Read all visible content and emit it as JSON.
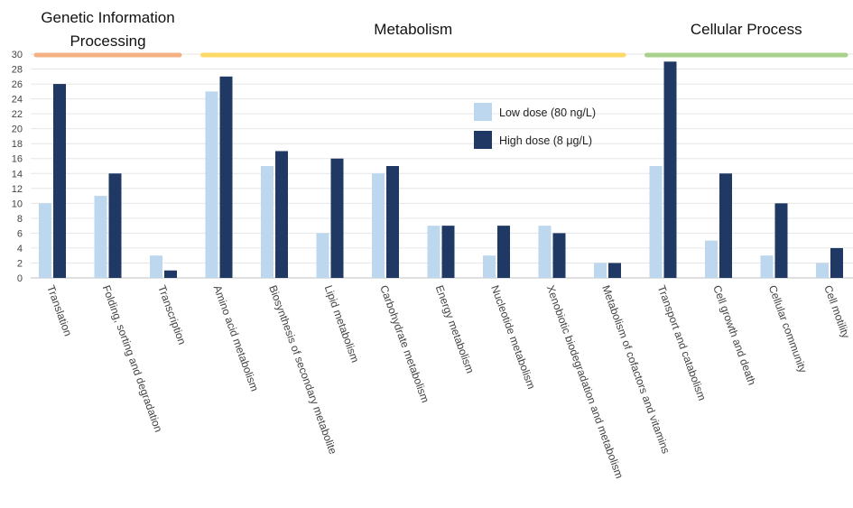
{
  "chart_data": {
    "type": "bar",
    "categories": [
      "Translation",
      "Folding, sorting and degradation",
      "Transcription",
      "Amino acid metabolism",
      "Biosynthesis of secondary metabolite",
      "Lipid metabolism",
      "Carbohydrate metabolism",
      "Energy metabolism",
      "Nucleotide metabolism",
      "Xenobiotic biodegradation and metabolism",
      "Metabolism of cofactors and vitamins",
      "Transport and catabolism",
      "Cell growth and death",
      "Cellular community",
      "Cell motility"
    ],
    "series": [
      {
        "name": "Low dose (80 ng/L)",
        "color": "#bdd7ee",
        "values": [
          10,
          11,
          3,
          25,
          15,
          6,
          14,
          7,
          3,
          7,
          2,
          15,
          5,
          3,
          2
        ]
      },
      {
        "name": "High dose (8 μg/L)",
        "color": "#203864",
        "values": [
          26,
          14,
          1,
          27,
          17,
          16,
          15,
          7,
          7,
          6,
          2,
          29,
          14,
          10,
          4
        ]
      }
    ],
    "groups": [
      {
        "lines": [
          "Genetic Information",
          "Processing"
        ],
        "color": "#f4b183",
        "first": 0,
        "last": 2
      },
      {
        "lines": [
          "Metabolism"
        ],
        "color": "#ffd966",
        "first": 3,
        "last": 10
      },
      {
        "lines": [
          "Cellular Process"
        ],
        "color": "#a9d18e",
        "first": 11,
        "last": 14
      }
    ],
    "ylim": [
      0,
      30
    ],
    "yticks": [
      0,
      2,
      4,
      6,
      8,
      10,
      12,
      14,
      16,
      18,
      20,
      22,
      24,
      26,
      28,
      30
    ],
    "grid": true,
    "legend_position": "top-center"
  }
}
